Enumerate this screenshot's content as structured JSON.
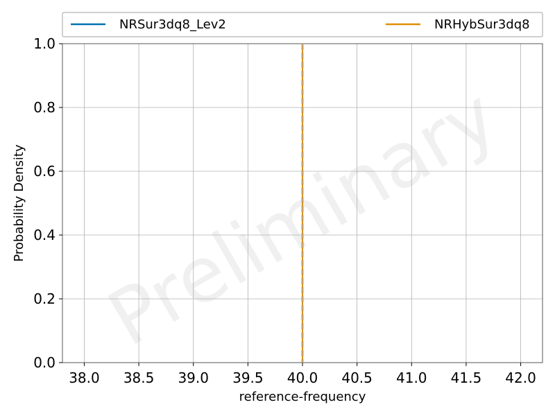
{
  "chart_data": {
    "type": "line",
    "xlabel": "reference-frequency",
    "ylabel": "Probability Density",
    "xlim": [
      37.8,
      42.2
    ],
    "ylim": [
      0.0,
      1.0
    ],
    "xticks": [
      38.0,
      38.5,
      39.0,
      39.5,
      40.0,
      40.5,
      41.0,
      41.5,
      42.0
    ],
    "xtick_labels": [
      "38.0",
      "38.5",
      "39.0",
      "39.5",
      "40.0",
      "40.5",
      "41.0",
      "41.5",
      "42.0"
    ],
    "yticks": [
      0.0,
      0.2,
      0.4,
      0.6,
      0.8,
      1.0
    ],
    "ytick_labels": [
      "0.0",
      "0.2",
      "0.4",
      "0.6",
      "0.8",
      "1.0"
    ],
    "grid": true,
    "legend_position": "top",
    "watermark": "Preliminary",
    "series": [
      {
        "name": "NRSur3dq8_Lev2",
        "color": "#0072b2",
        "style": "solid",
        "x": [
          40.0,
          40.0
        ],
        "y": [
          0.0,
          1.0
        ]
      },
      {
        "name": "NRHybSur3dq8",
        "color": "#de8f05",
        "style": "solid",
        "x": [
          40.0,
          40.0
        ],
        "y": [
          0.0,
          1.0
        ]
      }
    ],
    "vlines": [
      {
        "x": 40.0,
        "color": "#c8a060",
        "style": "dashed"
      }
    ]
  }
}
